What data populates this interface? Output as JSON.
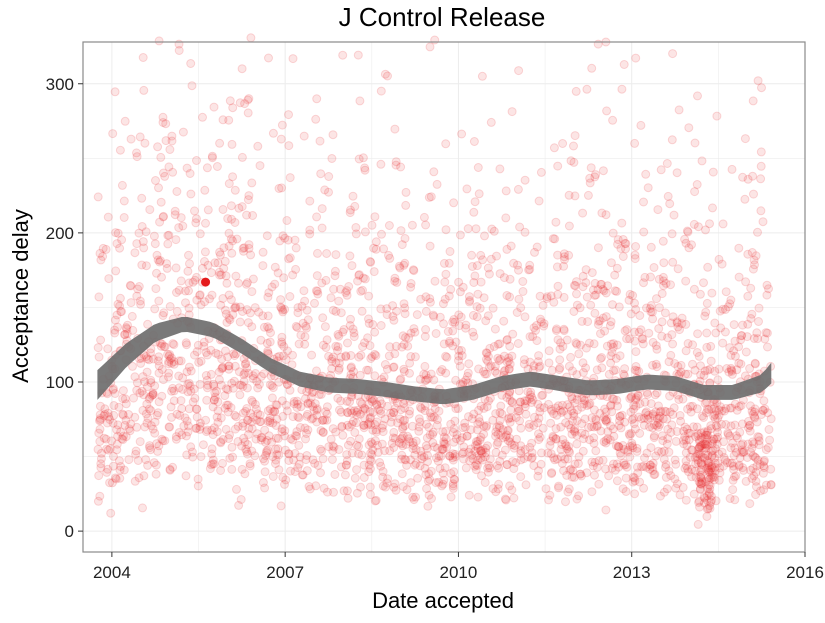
{
  "chart_data": {
    "type": "scatter",
    "title": "J Control Release",
    "xlabel": "Date accepted",
    "ylabel": "Acceptance delay",
    "x_axis_type": "date",
    "xlim": [
      "2003-07-01",
      "2016-01-01"
    ],
    "ylim": [
      -14,
      328
    ],
    "x_ticks": [
      "2004",
      "2007",
      "2010",
      "2013",
      "2016"
    ],
    "y_ticks": [
      0,
      100,
      200,
      300
    ],
    "grid": true,
    "legend": "none",
    "colors": {
      "points": "#e8262b",
      "highlight": "#e41a1c",
      "smooth_band": "#6e6e6e",
      "panel_border": "#8a8a8a",
      "grid": "#ececec"
    },
    "point_opacity": 0.12,
    "point_count_estimate": 3000,
    "date_range": [
      "2003-10-01",
      "2015-06-01"
    ],
    "highlight_point": {
      "x": "2005-08-15",
      "y": 167
    },
    "smooth": {
      "x": [
        "2003-10-01",
        "2004-04-01",
        "2004-10-01",
        "2005-04-01",
        "2005-10-01",
        "2006-04-01",
        "2006-10-01",
        "2007-04-01",
        "2007-10-01",
        "2008-04-01",
        "2008-10-01",
        "2009-04-01",
        "2009-10-01",
        "2010-04-01",
        "2010-10-01",
        "2011-04-01",
        "2011-10-01",
        "2012-04-01",
        "2012-10-01",
        "2013-04-01",
        "2013-10-01",
        "2014-04-01",
        "2014-10-01",
        "2015-04-01",
        "2015-06-01"
      ],
      "y": [
        98,
        118,
        133,
        139,
        135,
        124,
        111,
        102,
        98,
        97,
        95,
        92,
        90,
        93,
        99,
        102,
        99,
        96,
        97,
        100,
        99,
        93,
        93,
        99,
        106
      ],
      "band_halfwidth": [
        10,
        8,
        6,
        5,
        5,
        5,
        5,
        5,
        5,
        5,
        5,
        5,
        5,
        5,
        5,
        5,
        5,
        5,
        5,
        5,
        5,
        5,
        5,
        6,
        7
      ]
    }
  }
}
